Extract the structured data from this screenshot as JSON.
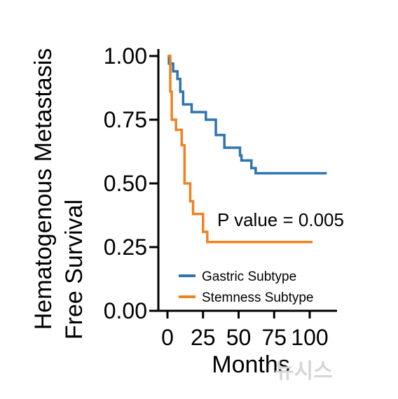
{
  "chart_data": {
    "type": "line",
    "title": "",
    "xlabel": "Months",
    "ylabel": [
      "Hematogenous Metastasis",
      "Free Survival"
    ],
    "xlim": [
      0,
      110
    ],
    "ylim": [
      0,
      1
    ],
    "x_ticks": [
      "0",
      "25",
      "50",
      "75",
      "100"
    ],
    "x_tick_values": [
      0,
      25,
      50,
      75,
      100
    ],
    "y_ticks": [
      "0.00",
      "0.25",
      "0.50",
      "0.75",
      "1.00"
    ],
    "y_tick_values": [
      0,
      0.25,
      0.5,
      0.75,
      1.0
    ],
    "grid": false,
    "legend_position": "bottom-left",
    "annotation": "P value = 0.005",
    "series": [
      {
        "name": "Gastric Subtype",
        "color": "#2e75b0",
        "step": true,
        "points": [
          [
            0,
            1.0
          ],
          [
            1,
            0.97
          ],
          [
            4,
            0.94
          ],
          [
            7,
            0.91
          ],
          [
            9,
            0.86
          ],
          [
            11,
            0.81
          ],
          [
            17,
            0.78
          ],
          [
            27,
            0.75
          ],
          [
            34,
            0.69
          ],
          [
            40,
            0.64
          ],
          [
            51,
            0.61
          ],
          [
            52,
            0.59
          ],
          [
            59,
            0.56
          ],
          [
            62,
            0.54
          ],
          [
            112,
            0.54
          ]
        ]
      },
      {
        "name": "Stemness Subtype",
        "color": "#ef8320",
        "step": true,
        "points": [
          [
            0,
            1.0
          ],
          [
            2,
            0.86
          ],
          [
            3,
            0.75
          ],
          [
            6,
            0.71
          ],
          [
            10,
            0.65
          ],
          [
            12,
            0.5
          ],
          [
            16,
            0.43
          ],
          [
            18,
            0.38
          ],
          [
            25,
            0.31
          ],
          [
            28,
            0.27
          ],
          [
            102,
            0.27
          ]
        ]
      }
    ]
  },
  "watermark": "뉴시스"
}
